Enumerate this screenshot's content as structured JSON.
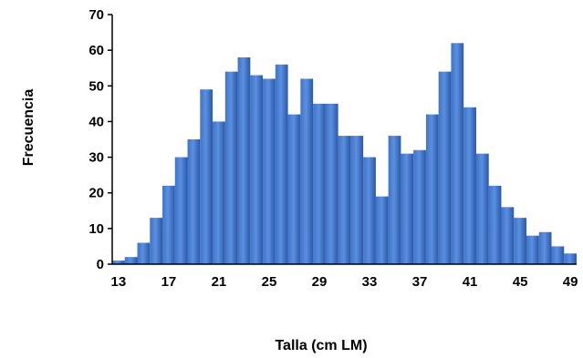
{
  "chart_data": {
    "type": "bar",
    "title": "",
    "xlabel": "Talla (cm LM)",
    "ylabel": "Frecuencia",
    "x": [
      13,
      14,
      15,
      16,
      17,
      18,
      19,
      20,
      21,
      22,
      23,
      24,
      25,
      26,
      27,
      28,
      29,
      30,
      31,
      32,
      33,
      34,
      35,
      36,
      37,
      38,
      39,
      40,
      41,
      42,
      43,
      44,
      45,
      46,
      47,
      48,
      49
    ],
    "values": [
      1,
      2,
      6,
      13,
      22,
      30,
      35,
      49,
      40,
      54,
      58,
      53,
      52,
      56,
      42,
      52,
      45,
      45,
      36,
      36,
      30,
      19,
      36,
      31,
      32,
      42,
      54,
      62,
      44,
      31,
      22,
      16,
      13,
      8,
      9,
      5,
      3
    ],
    "xticks": [
      "13",
      "17",
      "21",
      "25",
      "29",
      "33",
      "37",
      "41",
      "45",
      "49"
    ],
    "yticks": [
      "0",
      "10",
      "20",
      "30",
      "40",
      "50",
      "60",
      "70"
    ],
    "ylim": [
      0,
      70
    ],
    "bar_color": "#3f73c6",
    "bar_highlight": "#5b8fe0",
    "bar_shadow": "#2a58a8",
    "axis_color": "#000000",
    "grid": false,
    "legend": "none"
  }
}
